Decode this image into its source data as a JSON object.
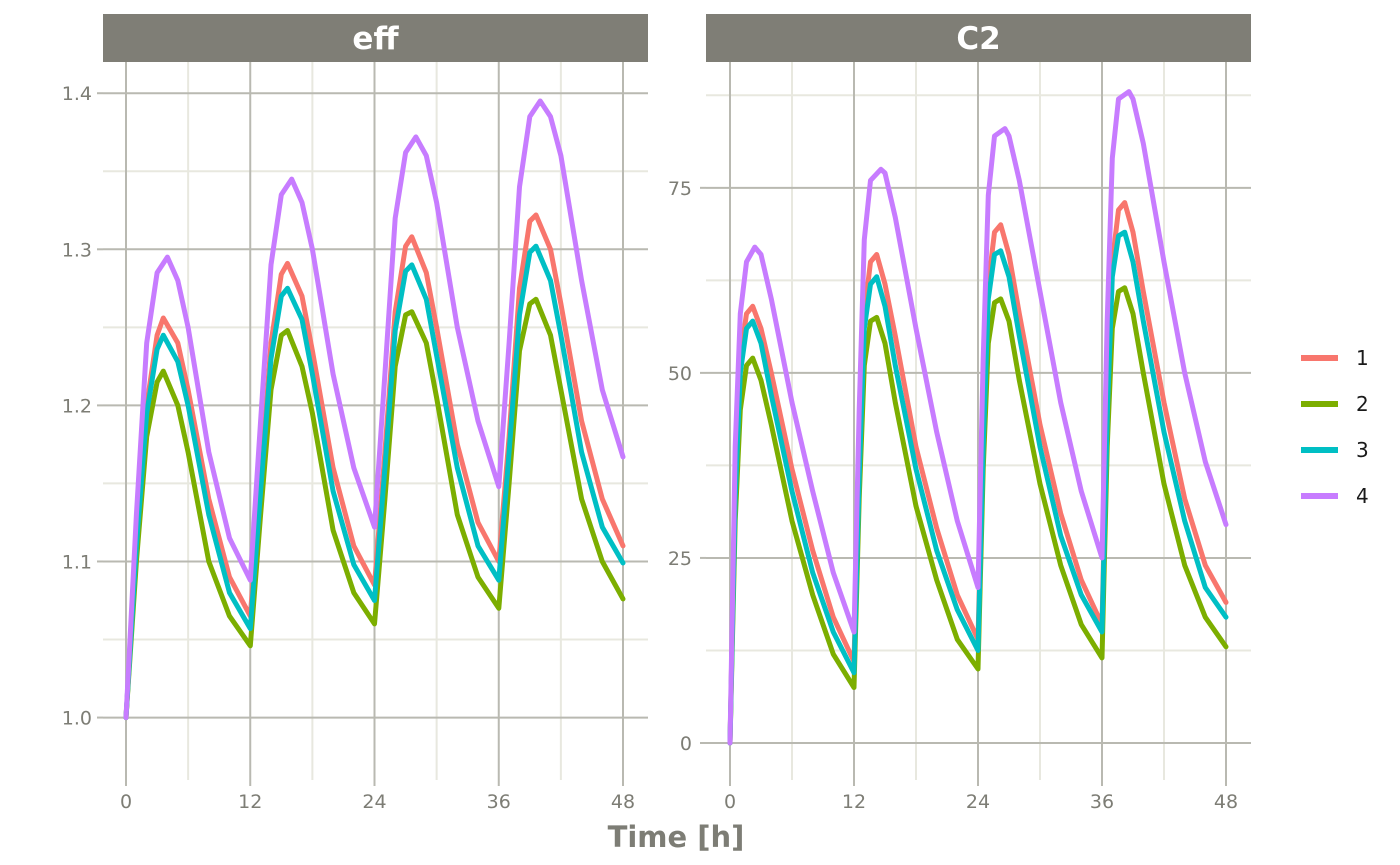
{
  "chart_data": {
    "type": "line",
    "xlabel": "Time [h]",
    "x_ticks": [
      0,
      12,
      24,
      36,
      48
    ],
    "xlim": [
      0,
      48
    ],
    "grid": true,
    "legend": {
      "position": "right",
      "entries": [
        {
          "label": "1",
          "color": "#F8766D"
        },
        {
          "label": "2",
          "color": "#7CAE00"
        },
        {
          "label": "3",
          "color": "#00BFC4"
        },
        {
          "label": "4",
          "color": "#C77CFF"
        }
      ]
    },
    "panels": [
      {
        "title": "eff",
        "ylim": [
          0.96,
          1.42
        ],
        "y_ticks": [
          1.0,
          1.1,
          1.2,
          1.3,
          1.4
        ],
        "y_tick_labels": [
          "1.0",
          "1.1",
          "1.2",
          "1.3",
          "1.4"
        ],
        "series": [
          {
            "name": "1",
            "x": [
              0,
              1,
              2,
              3,
              3.6,
              5,
              6,
              8,
              10,
              12,
              13,
              14,
              15,
              15.6,
              17,
              18,
              20,
              22,
              24,
              25,
              26,
              27,
              27.6,
              29,
              30,
              32,
              34,
              36,
              37,
              38,
              39,
              39.6,
              41,
              42,
              44,
              46,
              48
            ],
            "y": [
              1.0,
              1.11,
              1.2,
              1.245,
              1.256,
              1.24,
              1.21,
              1.14,
              1.09,
              1.065,
              1.15,
              1.24,
              1.284,
              1.291,
              1.27,
              1.235,
              1.16,
              1.11,
              1.085,
              1.17,
              1.26,
              1.302,
              1.308,
              1.285,
              1.25,
              1.175,
              1.125,
              1.1,
              1.18,
              1.275,
              1.318,
              1.322,
              1.3,
              1.265,
              1.19,
              1.14,
              1.11
            ]
          },
          {
            "name": "2",
            "x": [
              0,
              1,
              2,
              3,
              3.6,
              5,
              6,
              8,
              10,
              12,
              13,
              14,
              15,
              15.6,
              17,
              18,
              20,
              22,
              24,
              25,
              26,
              27,
              27.6,
              29,
              30,
              32,
              34,
              36,
              37,
              38,
              39,
              39.6,
              41,
              42,
              44,
              46,
              48
            ],
            "y": [
              1.0,
              1.1,
              1.18,
              1.215,
              1.222,
              1.2,
              1.17,
              1.1,
              1.065,
              1.046,
              1.13,
              1.21,
              1.245,
              1.248,
              1.225,
              1.195,
              1.12,
              1.08,
              1.06,
              1.14,
              1.225,
              1.258,
              1.26,
              1.24,
              1.205,
              1.13,
              1.09,
              1.07,
              1.15,
              1.235,
              1.265,
              1.268,
              1.245,
              1.21,
              1.14,
              1.1,
              1.076
            ]
          },
          {
            "name": "3",
            "x": [
              0,
              1,
              2,
              3,
              3.6,
              5,
              6,
              8,
              10,
              12,
              13,
              14,
              15,
              15.6,
              17,
              18,
              20,
              22,
              24,
              25,
              26,
              27,
              27.6,
              29,
              30,
              32,
              34,
              36,
              37,
              38,
              39,
              39.6,
              41,
              42,
              44,
              46,
              48
            ],
            "y": [
              1.0,
              1.11,
              1.195,
              1.236,
              1.245,
              1.228,
              1.2,
              1.13,
              1.08,
              1.057,
              1.145,
              1.23,
              1.27,
              1.275,
              1.255,
              1.22,
              1.145,
              1.098,
              1.075,
              1.16,
              1.248,
              1.286,
              1.29,
              1.268,
              1.232,
              1.16,
              1.11,
              1.088,
              1.17,
              1.258,
              1.298,
              1.302,
              1.28,
              1.245,
              1.17,
              1.122,
              1.099
            ]
          },
          {
            "name": "4",
            "x": [
              0,
              1,
              2,
              3,
              4,
              5,
              6,
              8,
              10,
              12,
              13,
              14,
              15,
              16,
              17,
              18,
              20,
              22,
              24,
              25,
              26,
              27,
              28,
              29,
              30,
              32,
              34,
              36,
              37,
              38,
              39,
              40,
              41,
              42,
              44,
              46,
              48
            ],
            "y": [
              1.0,
              1.13,
              1.24,
              1.285,
              1.295,
              1.28,
              1.25,
              1.17,
              1.115,
              1.088,
              1.19,
              1.29,
              1.335,
              1.345,
              1.33,
              1.3,
              1.22,
              1.16,
              1.122,
              1.22,
              1.32,
              1.362,
              1.372,
              1.36,
              1.33,
              1.25,
              1.19,
              1.148,
              1.24,
              1.34,
              1.385,
              1.395,
              1.385,
              1.36,
              1.28,
              1.21,
              1.167
            ]
          }
        ]
      },
      {
        "title": "C2",
        "ylim": [
          -5,
          92
        ],
        "y_ticks": [
          0,
          25,
          50,
          75
        ],
        "y_tick_labels": [
          "0",
          "25",
          "50",
          "75"
        ],
        "series": [
          {
            "name": "1",
            "x": [
              0,
              0.5,
              1,
              1.6,
              2.2,
              3,
              4,
              6,
              8,
              10,
              12,
              12.5,
              13,
              13.6,
              14.2,
              15,
              16,
              18,
              20,
              22,
              24,
              24.5,
              25,
              25.6,
              26.2,
              27,
              28,
              30,
              32,
              34,
              36,
              36.5,
              37,
              37.6,
              38.2,
              39,
              40,
              42,
              44,
              46,
              48
            ],
            "y": [
              0,
              35,
              52,
              58,
              59,
              56,
              50,
              37,
              26,
              17,
              11,
              38,
              58,
              65,
              66,
              62,
              55,
              40,
              29,
              20,
              14,
              42,
              62,
              69,
              70,
              66,
              58,
              43,
              31,
              22,
              16,
              46,
              65,
              72,
              73,
              69,
              61,
              46,
              33,
              24,
              19
            ]
          },
          {
            "name": "2",
            "x": [
              0,
              0.5,
              1,
              1.6,
              2.2,
              3,
              4,
              6,
              8,
              10,
              12,
              12.5,
              13,
              13.6,
              14.2,
              15,
              16,
              18,
              20,
              22,
              24,
              24.5,
              25,
              25.6,
              26.2,
              27,
              28,
              30,
              32,
              34,
              36,
              36.5,
              37,
              37.6,
              38.2,
              39,
              40,
              42,
              44,
              46,
              48
            ],
            "y": [
              0,
              30,
              45,
              51,
              52,
              49,
              43,
              30,
              20,
              12,
              7.5,
              33,
              51,
              57,
              57.5,
              54,
              46,
              32,
              22,
              14,
              10,
              37,
              54,
              59.5,
              60,
              57,
              49,
              35,
              24,
              16,
              11.5,
              40,
              56,
              61,
              61.5,
              58,
              50,
              35,
              24,
              17,
              13
            ]
          },
          {
            "name": "3",
            "x": [
              0,
              0.5,
              1,
              1.6,
              2.2,
              3,
              4,
              6,
              8,
              10,
              12,
              12.5,
              13,
              13.6,
              14.2,
              15,
              16,
              18,
              20,
              22,
              24,
              24.5,
              25,
              25.6,
              26.2,
              27,
              28,
              30,
              32,
              34,
              36,
              36.5,
              37,
              37.6,
              38.2,
              39,
              40,
              42,
              44,
              46,
              48
            ],
            "y": [
              0,
              33,
              50,
              56,
              57,
              54,
              47,
              34,
              23,
              15,
              9.5,
              36,
              56,
              62,
              63,
              59,
              51,
              37,
              26,
              18,
              12.5,
              40,
              60,
              66,
              66.5,
              63,
              55,
              40,
              28,
              20,
              15,
              44,
              63,
              68.5,
              69,
              65,
              57,
              42,
              30,
              21,
              17
            ]
          },
          {
            "name": "4",
            "x": [
              0,
              0.5,
              1,
              1.6,
              2.4,
              3,
              4,
              6,
              8,
              10,
              12,
              12.5,
              13,
              13.6,
              14.6,
              15,
              16,
              18,
              20,
              22,
              24,
              24.5,
              25,
              25.6,
              26.6,
              27,
              28,
              30,
              32,
              34,
              36,
              36.5,
              37,
              37.6,
              38.6,
              39,
              40,
              42,
              44,
              46,
              48
            ],
            "y": [
              0,
              40,
              58,
              65,
              67,
              66,
              60,
              46,
              34,
              23,
              15,
              45,
              68,
              76,
              77.5,
              77,
              71,
              56,
              42,
              30,
              21,
              52,
              74,
              82,
              83,
              82,
              76,
              61,
              46,
              34,
              25,
              57,
              79,
              87,
              88,
              87,
              81,
              65,
              50,
              38,
              29.5
            ]
          }
        ]
      }
    ]
  }
}
